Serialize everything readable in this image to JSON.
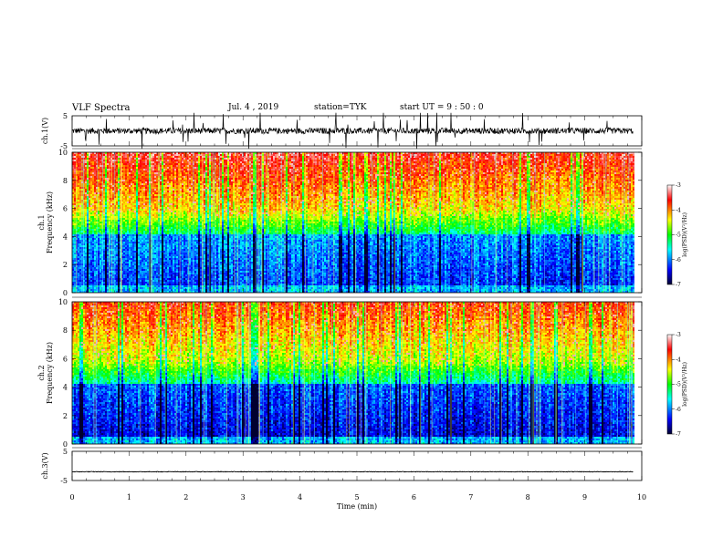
{
  "header": {
    "title": "VLF Spectra",
    "date": "Jul. 4 , 2019",
    "station": "station=TYK",
    "start": "start UT =  9 : 50 : 0"
  },
  "chart_data": [
    {
      "type": "line",
      "name": "ch1-waveform",
      "ylabel": "ch.1(V)",
      "ylim": [
        -5,
        5
      ],
      "yticks": [
        "5",
        "-5"
      ],
      "xlim": [
        0,
        10
      ],
      "baseline": 0,
      "noise_amplitude": 1.0
    },
    {
      "type": "heatmap",
      "name": "ch1-spectrogram",
      "ylabel_line1": "ch.1",
      "ylabel_line2": "Frequency (kHz)",
      "ylim": [
        0,
        10
      ],
      "yticks": [
        "0",
        "2",
        "4",
        "6",
        "8",
        "10"
      ],
      "xlim": [
        0,
        9.85
      ],
      "colorbar": {
        "label": "log(PSD)(V²/Hz)",
        "range": [
          -7,
          -3
        ],
        "ticks": [
          "-3",
          "-4",
          "-5",
          "-6",
          "-7"
        ]
      }
    },
    {
      "type": "heatmap",
      "name": "ch2-spectrogram",
      "ylabel_line1": "ch.2",
      "ylabel_line2": "Frequency (kHz)",
      "ylim": [
        0,
        10
      ],
      "yticks": [
        "0",
        "2",
        "4",
        "6",
        "8",
        "10"
      ],
      "xlim": [
        0,
        9.85
      ],
      "colorbar": {
        "label": "log(PSD)(V²/Hz)",
        "range": [
          -7,
          -3
        ],
        "ticks": [
          "-3",
          "-4",
          "-5",
          "-6",
          "-7"
        ]
      }
    },
    {
      "type": "line",
      "name": "ch3-waveform",
      "ylabel": "ch.3(V)",
      "ylim": [
        -5,
        5
      ],
      "yticks": [
        "5",
        "-5"
      ],
      "xlim": [
        0,
        10
      ],
      "baseline": -2,
      "noise_amplitude": 0.1
    }
  ],
  "xaxis": {
    "label": "Time (min)",
    "range": [
      0,
      10
    ],
    "ticks": [
      "0",
      "1",
      "2",
      "3",
      "4",
      "5",
      "6",
      "7",
      "8",
      "9",
      "10"
    ]
  },
  "colors": {
    "low": "#000040",
    "blue": "#0000ff",
    "cyan": "#00ffff",
    "green": "#00ff00",
    "yellow": "#ffff00",
    "red": "#ff0000",
    "high": "#ffffff"
  }
}
